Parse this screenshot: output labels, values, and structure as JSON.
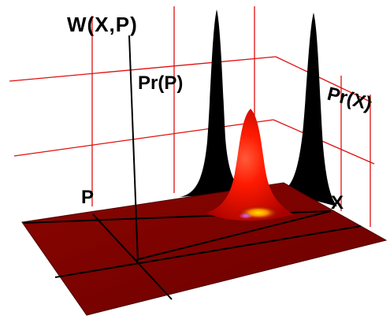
{
  "figure": {
    "labels": {
      "wigner": "W(X,P)",
      "marginal_p": "Pr(P)",
      "marginal_x": "Pr(X)",
      "p_axis": "P",
      "x_axis": "X"
    },
    "colors": {
      "background": "#ffffff",
      "grid_line": "#e01010",
      "floor": "#7a0000",
      "floor_edge": "#4a0000",
      "axis_line": "#000000",
      "marginal_fill": "#000000",
      "peak_red": "#ff1a00",
      "peak_dark": "#b00000",
      "highlight_yellow": "#ffd000",
      "highlight_magenta": "#c040ff"
    }
  }
}
